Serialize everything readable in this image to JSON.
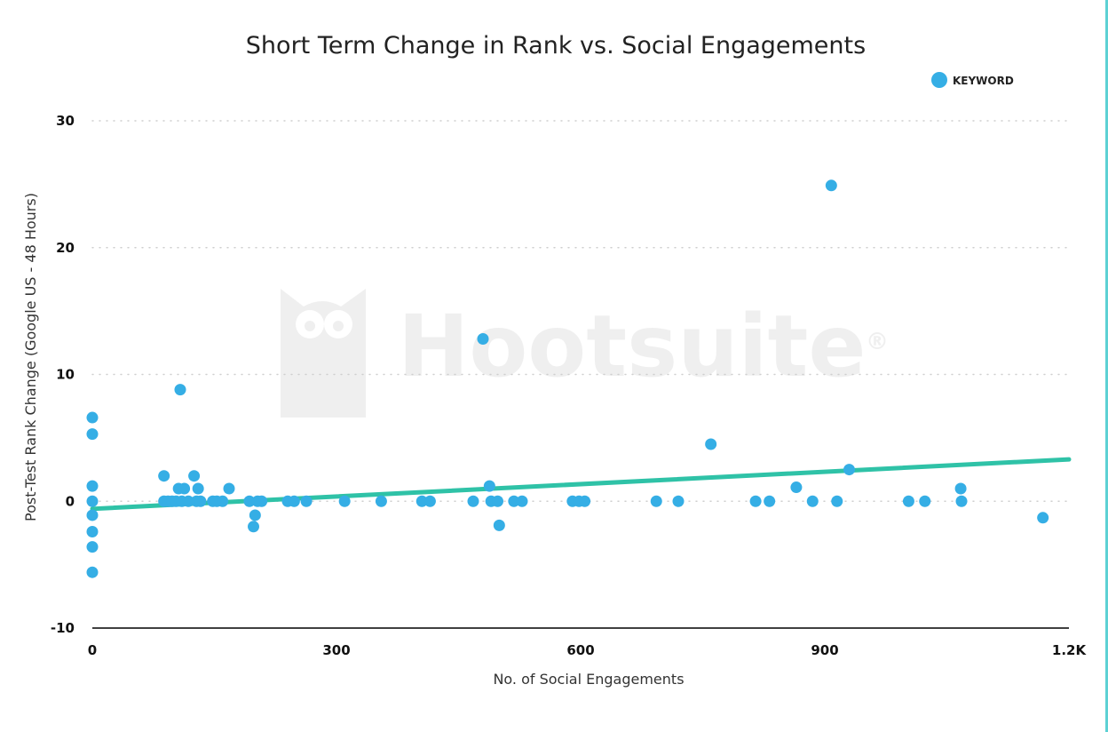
{
  "watermark": {
    "text": "Hootsuite",
    "mark": "®"
  },
  "colors": {
    "points": "#35aee5",
    "trend": "#2fc2a7",
    "accent_edge": "#5dd1d4"
  },
  "chart_data": {
    "type": "scatter",
    "title": "Short Term Change in Rank vs. Social Engagements",
    "xlabel": "No. of Social Engagements",
    "ylabel": "Post-Test Rank Change (Google US - 48 Hours)",
    "xlim": [
      0,
      1200
    ],
    "ylim": [
      -10,
      30
    ],
    "xticks": [
      0,
      300,
      600,
      900,
      1200
    ],
    "xtick_labels": [
      "0",
      "300",
      "600",
      "900",
      "1.2K"
    ],
    "yticks": [
      30,
      20,
      10,
      0,
      -10
    ],
    "ytick_labels": [
      "30",
      "20",
      "10",
      "0",
      "-10"
    ],
    "legend": {
      "position": "top-right",
      "entries": [
        "KEYWORD"
      ]
    },
    "series": [
      {
        "name": "KEYWORD",
        "points": [
          [
            0,
            6.6
          ],
          [
            0,
            5.3
          ],
          [
            0,
            1.2
          ],
          [
            0,
            0
          ],
          [
            0,
            -1.1
          ],
          [
            0,
            -2.4
          ],
          [
            0,
            -3.6
          ],
          [
            0,
            -5.6
          ],
          [
            88,
            2.0
          ],
          [
            88,
            0
          ],
          [
            93,
            0
          ],
          [
            98,
            0
          ],
          [
            103,
            0
          ],
          [
            106,
            1.0
          ],
          [
            108,
            8.8
          ],
          [
            110,
            0
          ],
          [
            113,
            1.0
          ],
          [
            118,
            0
          ],
          [
            125,
            2.0
          ],
          [
            128,
            0
          ],
          [
            130,
            1.0
          ],
          [
            133,
            0
          ],
          [
            148,
            0
          ],
          [
            153,
            0
          ],
          [
            160,
            0
          ],
          [
            168,
            1.0
          ],
          [
            193,
            0
          ],
          [
            198,
            -2.0
          ],
          [
            200,
            -1.1
          ],
          [
            203,
            0
          ],
          [
            208,
            0
          ],
          [
            240,
            0
          ],
          [
            248,
            0
          ],
          [
            263,
            0
          ],
          [
            310,
            0
          ],
          [
            355,
            0
          ],
          [
            405,
            0
          ],
          [
            415,
            0
          ],
          [
            468,
            0
          ],
          [
            480,
            12.8
          ],
          [
            488,
            1.2
          ],
          [
            490,
            0
          ],
          [
            498,
            0
          ],
          [
            500,
            -1.9
          ],
          [
            518,
            0
          ],
          [
            528,
            0
          ],
          [
            590,
            0
          ],
          [
            598,
            0
          ],
          [
            605,
            0
          ],
          [
            693,
            0
          ],
          [
            720,
            0
          ],
          [
            760,
            4.5
          ],
          [
            815,
            0
          ],
          [
            832,
            0
          ],
          [
            865,
            1.1
          ],
          [
            885,
            0
          ],
          [
            908,
            24.9
          ],
          [
            915,
            0
          ],
          [
            930,
            2.5
          ],
          [
            1003,
            0
          ],
          [
            1023,
            0
          ],
          [
            1067,
            1.0
          ],
          [
            1068,
            0
          ],
          [
            1168,
            -1.3
          ]
        ]
      }
    ],
    "trendline": {
      "name": "trend",
      "x": [
        0,
        1200
      ],
      "y": [
        -0.6,
        3.3
      ]
    }
  }
}
